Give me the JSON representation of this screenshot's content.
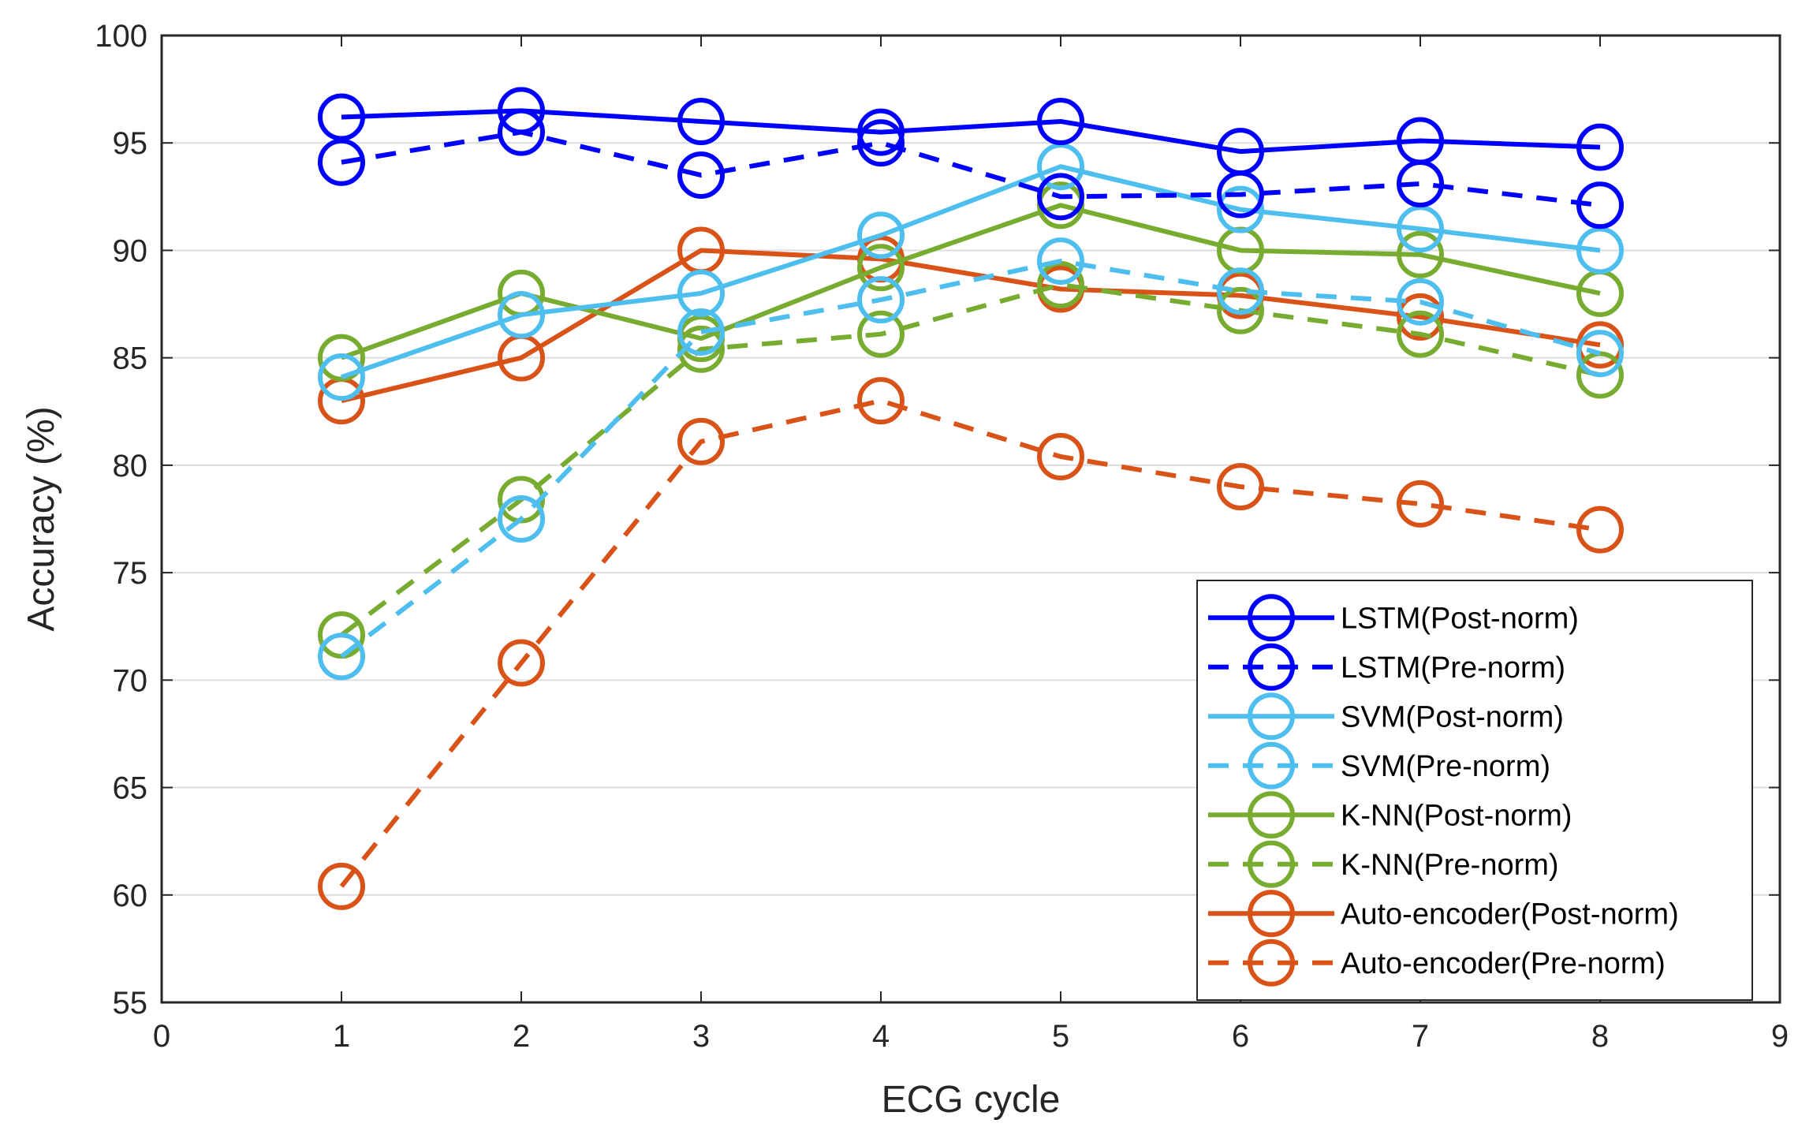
{
  "chart_data": {
    "type": "line",
    "title": "",
    "xlabel": "ECG cycle",
    "ylabel": "Accuracy (%)",
    "xlim": [
      0,
      9
    ],
    "ylim": [
      55,
      100
    ],
    "xticks": [
      0,
      1,
      2,
      3,
      4,
      5,
      6,
      7,
      8,
      9
    ],
    "yticks": [
      55,
      60,
      65,
      70,
      75,
      80,
      85,
      90,
      95,
      100
    ],
    "grid": "horizontal",
    "legend_position": "bottom-right",
    "x": [
      1,
      2,
      3,
      4,
      5,
      6,
      7,
      8
    ],
    "series": [
      {
        "name": "LSTM(Post-norm)",
        "color": "#0000ff",
        "style": "solid",
        "marker": "circle",
        "values": [
          96.2,
          96.5,
          96.0,
          95.5,
          96.0,
          94.6,
          95.1,
          94.8
        ]
      },
      {
        "name": "LSTM(Pre-norm)",
        "color": "#0000ff",
        "style": "dashed",
        "marker": "circle",
        "values": [
          94.1,
          95.5,
          93.5,
          95.0,
          92.5,
          92.6,
          93.1,
          92.1
        ]
      },
      {
        "name": "SVM(Post-norm)",
        "color": "#4dbeee",
        "style": "solid",
        "marker": "circle",
        "values": [
          84.1,
          87.0,
          88.0,
          90.7,
          93.9,
          91.9,
          91.0,
          90.0
        ]
      },
      {
        "name": "SVM(Pre-norm)",
        "color": "#4dbeee",
        "style": "dashed",
        "marker": "circle",
        "values": [
          71.1,
          77.5,
          86.2,
          87.7,
          89.5,
          88.1,
          87.6,
          85.2
        ]
      },
      {
        "name": "K-NN(Post-norm)",
        "color": "#77ac30",
        "style": "solid",
        "marker": "circle",
        "values": [
          85.0,
          88.0,
          85.9,
          89.2,
          92.1,
          90.0,
          89.8,
          88.0
        ]
      },
      {
        "name": "K-NN(Pre-norm)",
        "color": "#77ac30",
        "style": "dashed",
        "marker": "circle",
        "values": [
          72.1,
          78.4,
          85.4,
          86.1,
          88.4,
          87.2,
          86.1,
          84.2
        ]
      },
      {
        "name": "Auto-encoder(Post-norm)",
        "color": "#d95319",
        "style": "solid",
        "marker": "circle",
        "values": [
          83.0,
          85.0,
          90.0,
          89.6,
          88.2,
          87.9,
          86.9,
          85.6
        ]
      },
      {
        "name": "Auto-encoder(Pre-norm)",
        "color": "#d95319",
        "style": "dashed",
        "marker": "circle",
        "values": [
          60.4,
          70.8,
          81.1,
          83.0,
          80.4,
          79.0,
          78.2,
          77.0
        ]
      }
    ]
  }
}
